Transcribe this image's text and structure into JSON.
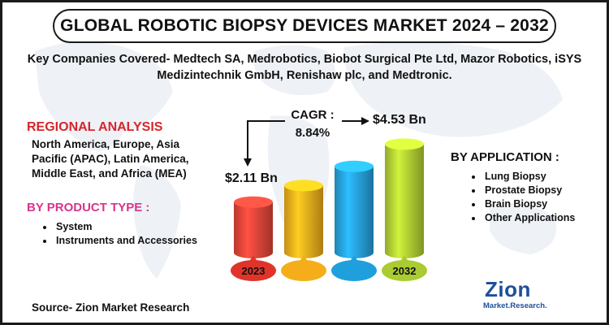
{
  "header": {
    "title": "GLOBAL ROBOTIC BIOPSY DEVICES MARKET 2024 – 2032"
  },
  "companies": {
    "line1": "Key Companies Covered- Medtech SA, Medrobotics, Biobot Surgical Pte Ltd, Mazor Robotics, iSYS",
    "line2": "Medizintechnik GmbH, Renishaw plc, and Medtronic."
  },
  "regional": {
    "heading": "REGIONAL ANALYSIS",
    "lines": [
      "North America, Europe, Asia",
      "Pacific (APAC), Latin America,",
      "Middle East, and Africa (MEA)"
    ]
  },
  "product_type": {
    "heading": "BY PRODUCT TYPE :",
    "items": [
      "System",
      "Instruments and Accessories"
    ]
  },
  "application": {
    "heading": "BY APPLICATION :",
    "items": [
      "Lung Biopsy",
      "Prostate Biopsy",
      "Brain Biopsy",
      "Other Applications"
    ]
  },
  "cagr": {
    "label": "CAGR :",
    "value": "8.84%"
  },
  "source": "Source- Zion Market Research",
  "logo": {
    "main": "Zion",
    "sub": "Market.Research."
  },
  "chart_data": {
    "type": "bar",
    "categories": [
      "2023",
      "",
      "",
      "2032"
    ],
    "values": [
      2.11,
      2.8,
      3.6,
      4.53
    ],
    "value_labels": [
      "$2.11 Bn",
      "",
      "",
      "$4.53 Bn"
    ],
    "colors": [
      "#e8463a",
      "#f6b21c",
      "#27a5e0",
      "#b5d334"
    ],
    "label_colors": [
      "#e0342b",
      "#f5ae1a",
      "#1f9fdc",
      "#aacb32"
    ],
    "annotations": [
      "CAGR : 8.84%"
    ]
  }
}
